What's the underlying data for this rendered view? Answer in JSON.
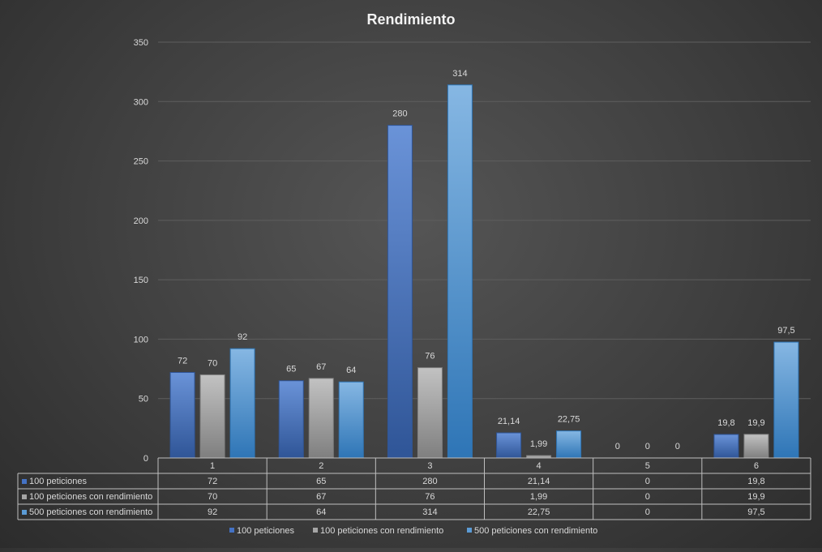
{
  "chart_data": {
    "type": "bar",
    "title": "Rendimiento",
    "categories": [
      "1",
      "2",
      "3",
      "4",
      "5",
      "6"
    ],
    "series": [
      {
        "name": "100 peticiones",
        "values": [
          72,
          65,
          280,
          21.14,
          0,
          19.8
        ],
        "labels": [
          "72",
          "65",
          "280",
          "21,14",
          "0",
          "19,8"
        ]
      },
      {
        "name": "100 peticiones con rendimiento",
        "values": [
          70,
          67,
          76,
          1.99,
          0,
          19.9
        ],
        "labels": [
          "70",
          "67",
          "76",
          "1,99",
          "0",
          "19,9"
        ]
      },
      {
        "name": "500 peticiones con rendimiento",
        "values": [
          92,
          64,
          314,
          22.75,
          0,
          97.5
        ],
        "labels": [
          "92",
          "64",
          "314",
          "22,75",
          "0",
          "97,5"
        ]
      }
    ],
    "ylim": [
      0,
      350
    ],
    "yticks": [
      "0",
      "50",
      "100",
      "150",
      "200",
      "250",
      "300",
      "350"
    ],
    "grid": true,
    "legend": "bottom",
    "data_table": true
  },
  "colors": {
    "series": [
      "#4472c4",
      "#a5a5a5",
      "#5b9bd5"
    ],
    "series_dark": [
      "#2f5597",
      "#7f7f7f",
      "#2e75b6"
    ],
    "series_light": [
      "#6a93d8",
      "#c2c2c2",
      "#86b7e3"
    ],
    "text": "#d9d9d9",
    "grid": "#5e5e5e",
    "table_border": "#bfbfbf"
  }
}
